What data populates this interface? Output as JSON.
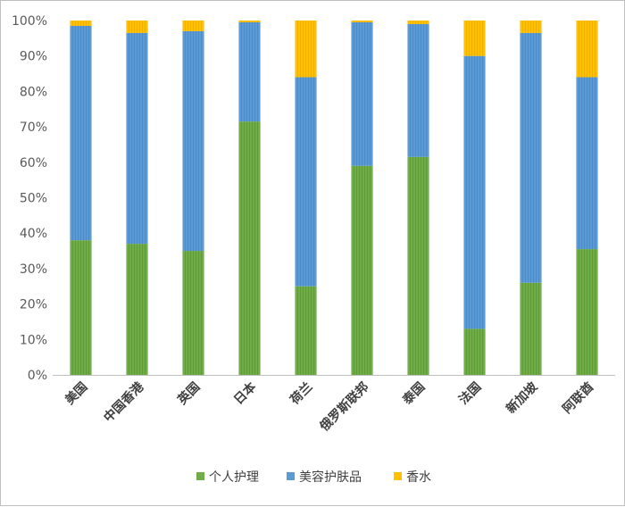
{
  "chart_data": {
    "type": "bar",
    "stacked": true,
    "normalized": true,
    "categories": [
      "美国",
      "中国香港",
      "英国",
      "日本",
      "荷兰",
      "俄罗斯联邦",
      "泰国",
      "法国",
      "新加坡",
      "阿联酋"
    ],
    "series": [
      {
        "name": "个人护理",
        "color": "#70ad47",
        "values": [
          38,
          37,
          35,
          71.5,
          25,
          59,
          61.5,
          13,
          26,
          35.5
        ]
      },
      {
        "name": "美容护肤品",
        "color": "#5b9bd5",
        "values": [
          60.5,
          59.5,
          62,
          28,
          59,
          40.5,
          37.5,
          77,
          70.5,
          48.5
        ]
      },
      {
        "name": "香水",
        "color": "#ffc000",
        "values": [
          1.5,
          3.5,
          3,
          0.5,
          16,
          0.5,
          1,
          10,
          3.5,
          16
        ]
      }
    ],
    "y_ticks": [
      "0%",
      "10%",
      "20%",
      "30%",
      "40%",
      "50%",
      "60%",
      "70%",
      "80%",
      "90%",
      "100%"
    ],
    "ylim": [
      0,
      100
    ],
    "grid": false,
    "legend_position": "bottom"
  }
}
